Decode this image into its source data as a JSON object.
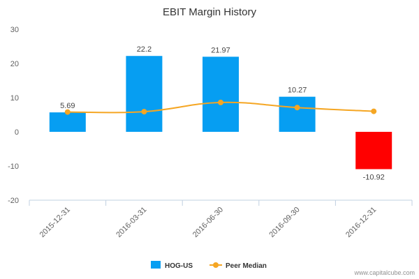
{
  "chart_data": {
    "type": "bar",
    "title": "EBIT Margin History",
    "categories": [
      "2015-12-31",
      "2016-03-31",
      "2016-06-30",
      "2016-09-30",
      "2016-12-31"
    ],
    "series": [
      {
        "name": "HOG-US",
        "type": "bar",
        "values": [
          5.69,
          22.2,
          21.97,
          10.27,
          -10.92
        ],
        "labels": [
          "5.69",
          "22.2",
          "21.97",
          "10.27",
          "-10.92"
        ],
        "color": "#069ef2",
        "negative_color": "#ff0000"
      },
      {
        "name": "Peer Median",
        "type": "line",
        "values": [
          5.8,
          5.9,
          8.6,
          7.1,
          6.0
        ],
        "color": "#f5a623"
      }
    ],
    "yticks": [
      "30",
      "20",
      "10",
      "0",
      "-10",
      "-20"
    ],
    "ylim": [
      -20,
      30
    ],
    "xlabel": "",
    "ylabel": "",
    "grid": false,
    "legend_position": "bottom-center"
  },
  "credit": "www.capitalcube.com"
}
